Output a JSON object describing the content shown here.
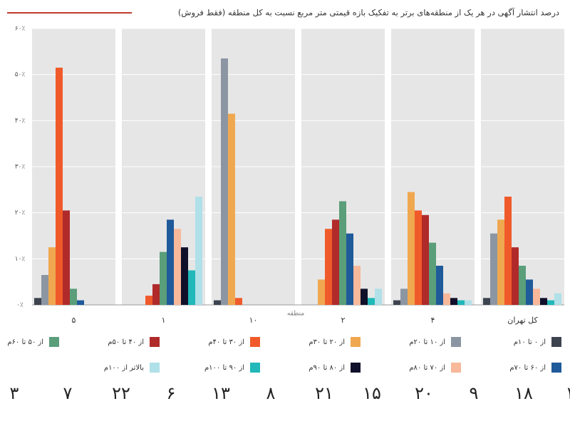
{
  "chart_data": {
    "type": "bar",
    "title": "درصد  انتشار آگهی در هر یک از منطقه‌های برتر به تفکیک بازه قیمتی متر مربع نسبت به کل منطقه (فقط فروش)",
    "x_label": "منطقه",
    "categories": [
      "۵",
      "۱",
      "۱۰",
      "۲",
      "۴",
      "کل تهران"
    ],
    "ylim": [
      0,
      60
    ],
    "yticks": [
      {
        "value": 0,
        "label": "۰٪"
      },
      {
        "value": 10,
        "label": "۱۰٪"
      },
      {
        "value": 20,
        "label": "۲۰٪"
      },
      {
        "value": 30,
        "label": "۳۰٪"
      },
      {
        "value": 40,
        "label": "۴۰٪"
      },
      {
        "value": 50,
        "label": "۵۰٪"
      },
      {
        "value": 60,
        "label": "۶۰٪"
      }
    ],
    "grid": true,
    "series": [
      {
        "name": "از ۰ تا ۱۰م",
        "color": "#3d4450",
        "values": [
          1.5,
          0,
          1,
          0,
          1,
          1.5
        ]
      },
      {
        "name": "از ۱۰ تا ۲۰م",
        "color": "#8c96a3",
        "values": [
          6.5,
          0,
          53.5,
          0,
          3.5,
          15.5
        ]
      },
      {
        "name": "از ۲۰ تا ۳۰م",
        "color": "#f0a850",
        "values": [
          12.5,
          0,
          41.5,
          5.5,
          24.5,
          18.5
        ]
      },
      {
        "name": "از ۳۰ تا ۴۰م",
        "color": "#f05a2a",
        "values": [
          51.5,
          2,
          1.5,
          16.5,
          20.5,
          23.5
        ]
      },
      {
        "name": "از ۴۰ تا ۵۰م",
        "color": "#b02a2a",
        "values": [
          20.5,
          4.5,
          0,
          18.5,
          19.5,
          12.5
        ]
      },
      {
        "name": "از ۵۰ تا ۶۰م",
        "color": "#5a9e7a",
        "values": [
          3.5,
          11.5,
          0,
          22.5,
          13.5,
          8.5
        ]
      },
      {
        "name": "از ۶۰ تا ۷۰م",
        "color": "#1f5a9a",
        "values": [
          1,
          18.5,
          0,
          15.5,
          8.5,
          5.5
        ]
      },
      {
        "name": "از ۷۰ تا ۸۰م",
        "color": "#f8b89a",
        "values": [
          0,
          16.5,
          0,
          8.5,
          2.5,
          3.5
        ]
      },
      {
        "name": "از ۸۰ تا ۹۰م",
        "color": "#10102a",
        "values": [
          0,
          12.5,
          0,
          3.5,
          1.5,
          1.5
        ]
      },
      {
        "name": "از ۹۰ تا ۱۰۰م",
        "color": "#20b8b8",
        "values": [
          0,
          7.5,
          0,
          1.5,
          1,
          1
        ]
      },
      {
        "name": "بالاتر از ۱۰۰م",
        "color": "#b0e0e8",
        "values": [
          0,
          23.5,
          0,
          3.5,
          1,
          2.5
        ]
      }
    ]
  },
  "footer": {
    "numbers": [
      "۳",
      "۷",
      "۲۲",
      "۶",
      "۱۳",
      "۸",
      "۲۱",
      "۱۵",
      "۲۰",
      "۹",
      "۱۸",
      "۱"
    ]
  }
}
